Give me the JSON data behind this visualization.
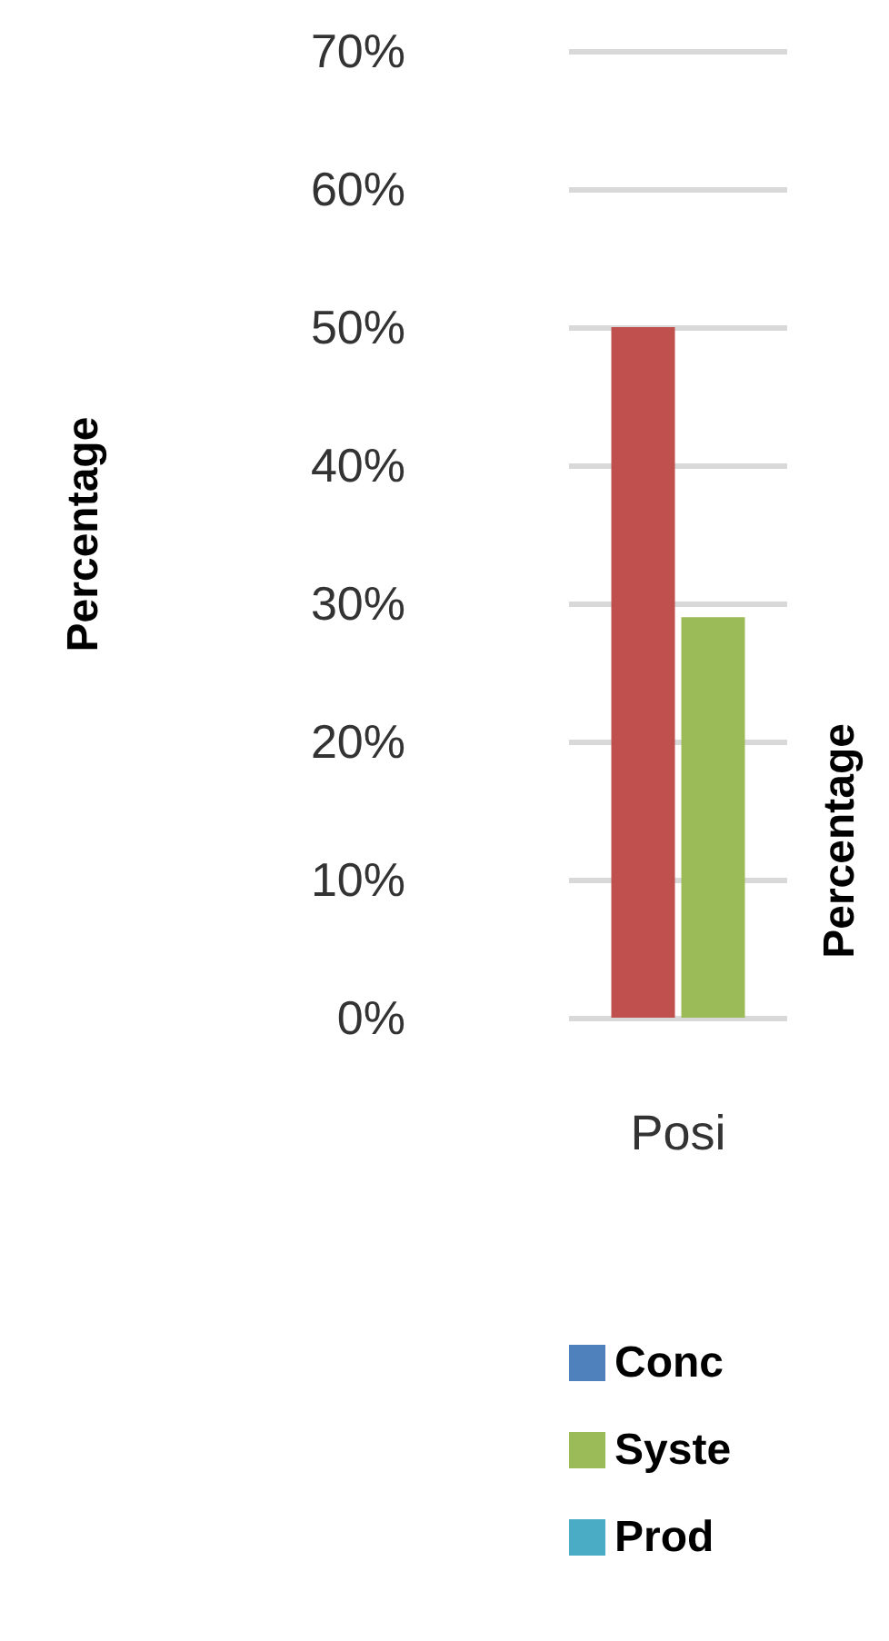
{
  "chart_data": {
    "type": "bar",
    "ylabel": "Percentage",
    "categories": [
      "Posi"
    ],
    "series": [
      {
        "color": "#c0504d",
        "values": [
          50
        ]
      },
      {
        "name": "Syste",
        "color": "#9bbb59",
        "values": [
          29
        ]
      },
      {
        "name": "Conc",
        "color": "#4f81bd",
        "values": [
          null
        ]
      },
      {
        "name": "Prod",
        "color": "#4bacc6",
        "values": [
          null
        ]
      }
    ],
    "ylim": [
      0,
      70
    ],
    "yticks": [
      {
        "value": 0,
        "label": "0%"
      },
      {
        "value": 10,
        "label": "10%"
      },
      {
        "value": 20,
        "label": "20%"
      },
      {
        "value": 30,
        "label": "30%"
      },
      {
        "value": 40,
        "label": "40%"
      },
      {
        "value": 50,
        "label": "50%"
      },
      {
        "value": 60,
        "label": "60%"
      },
      {
        "value": 70,
        "label": "70%"
      }
    ],
    "grid": "y",
    "legend": "bottom",
    "annotations": [
      "Percentage"
    ]
  }
}
